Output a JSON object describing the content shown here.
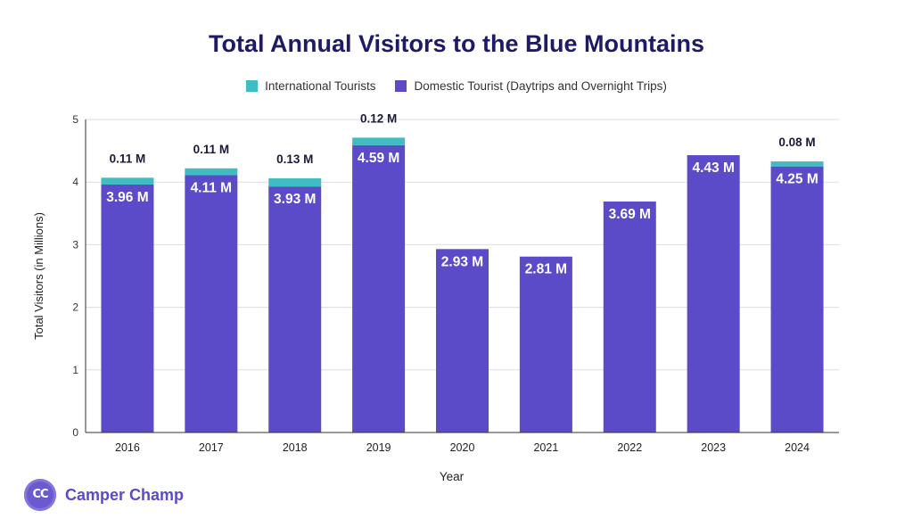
{
  "brand": {
    "name": "Camper Champ",
    "logo_text": "CC"
  },
  "colors": {
    "international": "#3fbdc3",
    "domestic": "#5b4bc9",
    "title": "#1f1a66",
    "grid": "#dddddd"
  },
  "chart_data": {
    "type": "bar",
    "stacked": true,
    "title": "Total Annual Visitors to the Blue Mountains",
    "xlabel": "Year",
    "ylabel": "Total Visitors (in Millions)",
    "ylim": [
      0,
      5
    ],
    "yticks": [
      0,
      1,
      2,
      3,
      4,
      5
    ],
    "grid": true,
    "legend_position": "top",
    "categories": [
      "2016",
      "2017",
      "2018",
      "2019",
      "2020",
      "2021",
      "2022",
      "2023",
      "2024"
    ],
    "series": [
      {
        "name": "Domestic Tourist (Daytrips and Overnight Trips)",
        "values": [
          3.96,
          4.11,
          3.93,
          4.59,
          2.93,
          2.81,
          3.69,
          4.43,
          4.25
        ],
        "labels": [
          "3.96 M",
          "4.11 M",
          "3.93 M",
          "4.59 M",
          "2.93 M",
          "2.81 M",
          "3.69 M",
          "4.43 M",
          "4.25 M"
        ]
      },
      {
        "name": "International Tourists",
        "values": [
          0.11,
          0.11,
          0.13,
          0.12,
          null,
          null,
          null,
          null,
          0.08
        ],
        "labels": [
          "0.11 M",
          "0.11 M",
          "0.13 M",
          "0.12 M",
          null,
          null,
          null,
          null,
          "0.08 M"
        ]
      }
    ]
  }
}
